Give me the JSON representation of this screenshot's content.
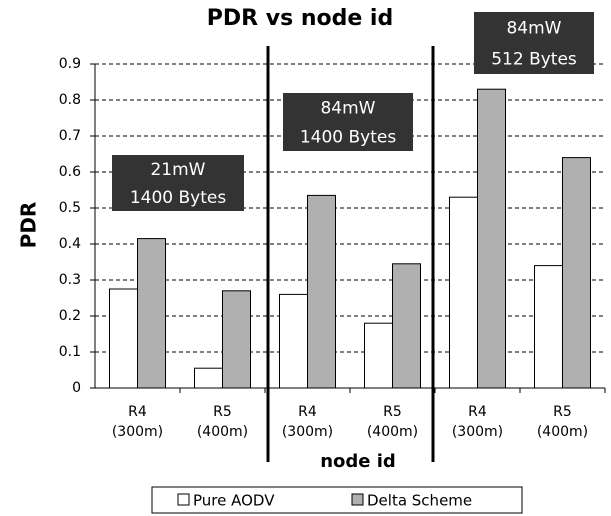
{
  "chart_data": {
    "type": "bar",
    "title": "PDR vs node id",
    "x_label": "node id",
    "y_label": "PDR",
    "categories": [
      [
        "R4",
        "(300m)"
      ],
      [
        "R5",
        "(400m)"
      ],
      [
        "R4",
        "(300m)"
      ],
      [
        "R5",
        "(400m)"
      ],
      [
        "R4",
        "(300m)"
      ],
      [
        "R5",
        "(400m)"
      ]
    ],
    "series": [
      {
        "name": "Pure AODV",
        "color": "#ffffff",
        "values": [
          0.275,
          0.055,
          0.26,
          0.18,
          0.53,
          0.34
        ]
      },
      {
        "name": "Delta Scheme",
        "color": "#b0b0b0",
        "values": [
          0.415,
          0.27,
          0.535,
          0.345,
          0.83,
          0.64
        ]
      }
    ],
    "annotations": [
      [
        "21mW",
        "1400 Bytes"
      ],
      [
        "84mW",
        "1400 Bytes"
      ],
      [
        "84mW",
        "512 Bytes"
      ]
    ],
    "ylim": [
      0,
      0.9
    ],
    "yticks": [
      0,
      0.1,
      0.2,
      0.3,
      0.4,
      0.5,
      0.6,
      0.7,
      0.8,
      0.9
    ],
    "grid": true,
    "legend": "bottom"
  }
}
